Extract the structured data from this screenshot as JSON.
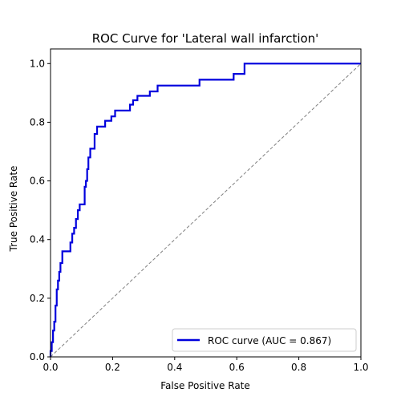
{
  "chart_data": {
    "type": "line",
    "title": "ROC Curve for 'Lateral wall infarction'",
    "xlabel": "False Positive Rate",
    "ylabel": "True Positive Rate",
    "xlim": [
      0.0,
      1.0
    ],
    "ylim": [
      0.0,
      1.05
    ],
    "x_ticks": [
      "0.0",
      "0.2",
      "0.4",
      "0.6",
      "0.8",
      "1.0"
    ],
    "y_ticks": [
      "0.0",
      "0.2",
      "0.4",
      "0.6",
      "0.8",
      "1.0"
    ],
    "grid": false,
    "legend_position": "bottom-right",
    "series": [
      {
        "name": "ROC curve (AUC = 0.867)",
        "color": "#0000dd",
        "x": [
          0.0,
          0.0,
          0.004,
          0.004,
          0.008,
          0.008,
          0.012,
          0.012,
          0.016,
          0.016,
          0.02,
          0.02,
          0.024,
          0.024,
          0.028,
          0.028,
          0.032,
          0.032,
          0.038,
          0.038,
          0.05,
          0.05,
          0.064,
          0.064,
          0.07,
          0.07,
          0.076,
          0.076,
          0.082,
          0.082,
          0.088,
          0.088,
          0.094,
          0.094,
          0.1,
          0.1,
          0.11,
          0.11,
          0.114,
          0.114,
          0.118,
          0.118,
          0.122,
          0.122,
          0.128,
          0.128,
          0.134,
          0.134,
          0.142,
          0.142,
          0.15,
          0.15,
          0.16,
          0.16,
          0.176,
          0.176,
          0.196,
          0.196,
          0.208,
          0.208,
          0.224,
          0.224,
          0.256,
          0.256,
          0.266,
          0.266,
          0.28,
          0.28,
          0.3,
          0.3,
          0.32,
          0.32,
          0.345,
          0.345,
          0.355,
          0.355,
          0.4,
          0.4,
          0.48,
          0.48,
          0.59,
          0.59,
          0.625,
          0.625,
          1.0
        ],
        "y": [
          0.0,
          0.02,
          0.02,
          0.05,
          0.05,
          0.09,
          0.09,
          0.12,
          0.12,
          0.175,
          0.175,
          0.23,
          0.23,
          0.26,
          0.26,
          0.29,
          0.29,
          0.32,
          0.32,
          0.36,
          0.36,
          0.36,
          0.36,
          0.39,
          0.39,
          0.42,
          0.42,
          0.44,
          0.44,
          0.47,
          0.47,
          0.5,
          0.5,
          0.52,
          0.52,
          0.52,
          0.52,
          0.58,
          0.58,
          0.6,
          0.6,
          0.64,
          0.64,
          0.68,
          0.68,
          0.71,
          0.71,
          0.71,
          0.71,
          0.76,
          0.76,
          0.785,
          0.785,
          0.785,
          0.785,
          0.805,
          0.805,
          0.82,
          0.82,
          0.84,
          0.84,
          0.84,
          0.84,
          0.86,
          0.86,
          0.875,
          0.875,
          0.89,
          0.89,
          0.89,
          0.89,
          0.905,
          0.905,
          0.925,
          0.925,
          0.925,
          0.925,
          0.925,
          0.925,
          0.945,
          0.945,
          0.965,
          0.965,
          1.0,
          1.0
        ]
      },
      {
        "name": "",
        "color": "#808080",
        "dashed": true,
        "x": [
          0.0,
          1.0
        ],
        "y": [
          0.0,
          1.0
        ]
      }
    ]
  }
}
